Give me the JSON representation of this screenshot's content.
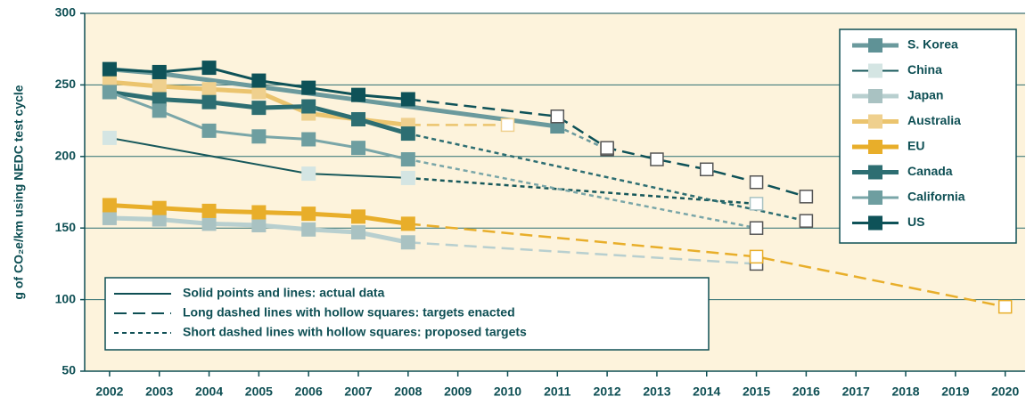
{
  "chart_data": {
    "type": "line",
    "ylabel": "g of CO₂e/km using NEDC test cycle",
    "xlim": [
      2001.5,
      2020.4
    ],
    "xticks": [
      2002,
      2003,
      2004,
      2005,
      2006,
      2007,
      2008,
      2009,
      2010,
      2011,
      2012,
      2013,
      2014,
      2015,
      2016,
      2017,
      2018,
      2019,
      2020
    ],
    "ylim": [
      50,
      300
    ],
    "yticks": [
      50,
      100,
      150,
      200,
      250,
      300
    ],
    "grid": true,
    "legend_position": "upper right",
    "notes": [
      {
        "label": "Solid points and lines: actual data",
        "style": "solid"
      },
      {
        "label": "Long dashed lines with hollow squares: targets enacted",
        "style": "long"
      },
      {
        "label": "Short dashed lines with hollow squares: proposed targets",
        "style": "short"
      }
    ],
    "series": [
      {
        "name": "S. Korea",
        "color": "#5f9296",
        "line_color": "#6b9a9d",
        "line_width": 5,
        "x": [
          2002,
          2003,
          2011
        ],
        "values": [
          261,
          258,
          221
        ],
        "target": {
          "style": "short",
          "x": [
            2012
          ],
          "values": [
            205
          ]
        }
      },
      {
        "name": "China",
        "color": "#d4e5e3",
        "line_color": "#17585b",
        "line_width": 2,
        "x": [
          2002,
          2006,
          2008
        ],
        "values": [
          213,
          188,
          185
        ],
        "target": {
          "style": "short",
          "x": [
            2015
          ],
          "values": [
            167
          ]
        }
      },
      {
        "name": "Japan",
        "color": "#a9c2c2",
        "line_color": "#b8cfcf",
        "line_width": 5,
        "x": [
          2002,
          2003,
          2004,
          2005,
          2006,
          2007,
          2008
        ],
        "values": [
          157,
          156,
          153,
          152,
          149,
          147,
          140
        ],
        "target": {
          "style": "long",
          "x": [
            2015
          ],
          "values": [
            125
          ]
        }
      },
      {
        "name": "Australia",
        "color": "#efd08e",
        "line_color": "#ebc46e",
        "line_width": 5,
        "x": [
          2002,
          2003,
          2004,
          2005,
          2006,
          2007,
          2008
        ],
        "values": [
          252,
          249,
          247,
          245,
          230,
          226,
          222
        ],
        "target": {
          "style": "long",
          "x": [
            2010
          ],
          "values": [
            222
          ]
        }
      },
      {
        "name": "EU",
        "color": "#e8ae2a",
        "line_color": "#e8ae2a",
        "line_width": 5,
        "x": [
          2002,
          2003,
          2004,
          2005,
          2006,
          2007,
          2008
        ],
        "values": [
          166,
          164,
          162,
          161,
          160,
          158,
          153
        ],
        "target": {
          "style": "long",
          "x": [
            2015,
            2020
          ],
          "values": [
            130,
            95
          ]
        }
      },
      {
        "name": "Canada",
        "color": "#2d6e72",
        "line_color": "#2d6e72",
        "line_width": 5,
        "x": [
          2002,
          2003,
          2004,
          2005,
          2006,
          2007,
          2008
        ],
        "values": [
          245,
          240,
          238,
          234,
          235,
          226,
          216
        ],
        "target": {
          "style": "short",
          "x": [
            2016
          ],
          "values": [
            155
          ]
        }
      },
      {
        "name": "California",
        "color": "#6e9ea0",
        "line_color": "#7aa6a8",
        "line_width": 3,
        "x": [
          2002,
          2003,
          2004,
          2005,
          2006,
          2007,
          2008
        ],
        "values": [
          245,
          232,
          218,
          214,
          212,
          206,
          198
        ],
        "target": {
          "style": "short",
          "x": [
            2015
          ],
          "values": [
            150
          ]
        }
      },
      {
        "name": "US",
        "color": "#0e5258",
        "line_color": "#0e5258",
        "line_width": 3,
        "x": [
          2002,
          2003,
          2004,
          2005,
          2006,
          2007,
          2008
        ],
        "values": [
          261,
          259,
          262,
          253,
          248,
          243,
          240
        ],
        "target": {
          "style": "long",
          "x": [
            2011,
            2012,
            2013,
            2014,
            2015,
            2016
          ],
          "values": [
            228,
            206,
            198,
            191,
            182,
            172
          ]
        }
      }
    ]
  }
}
